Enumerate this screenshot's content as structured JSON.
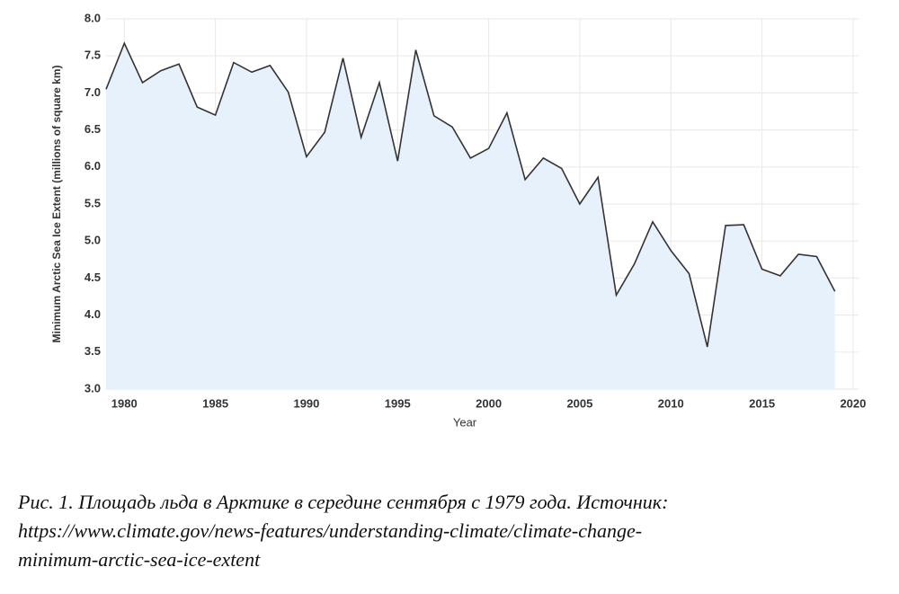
{
  "chart_data": {
    "type": "line",
    "xlabel": "Year",
    "ylabel": "Minimum Arctic Sea Ice Extent (millions of square km)",
    "x": [
      1979,
      1980,
      1981,
      1982,
      1983,
      1984,
      1985,
      1986,
      1987,
      1988,
      1989,
      1990,
      1991,
      1992,
      1993,
      1994,
      1995,
      1996,
      1997,
      1998,
      1999,
      2000,
      2001,
      2002,
      2003,
      2004,
      2005,
      2006,
      2007,
      2008,
      2009,
      2010,
      2011,
      2012,
      2013,
      2014,
      2015,
      2016,
      2017,
      2018,
      2019
    ],
    "series": [
      {
        "color": "#333333",
        "fill": "#e6f1fc",
        "values": [
          7.05,
          7.67,
          7.14,
          7.3,
          7.39,
          6.81,
          6.7,
          7.41,
          7.28,
          7.37,
          7.01,
          6.14,
          6.47,
          7.47,
          6.4,
          7.14,
          6.08,
          7.58,
          6.69,
          6.54,
          6.12,
          6.25,
          6.73,
          5.83,
          6.12,
          5.98,
          5.5,
          5.86,
          4.27,
          4.69,
          5.26,
          4.87,
          4.56,
          3.57,
          5.21,
          5.22,
          4.62,
          4.53,
          4.82,
          4.79,
          4.32
        ]
      }
    ],
    "xlim": [
      1979,
      2020.3
    ],
    "xticks": [
      1980,
      1985,
      1990,
      1995,
      2000,
      2005,
      2010,
      2015,
      2020
    ],
    "ylim": [
      3,
      8
    ],
    "yticks": [
      {
        "value": 3,
        "label": "3.0"
      },
      3.5,
      {
        "value": 4,
        "label": "4.0"
      },
      4.5,
      {
        "value": 5,
        "label": "5.0"
      },
      5.5,
      {
        "value": 6,
        "label": "6.0"
      },
      6.5,
      {
        "value": 7,
        "label": "7.0"
      },
      7.5,
      {
        "value": 8,
        "label": "8.0"
      }
    ],
    "grid": true
  },
  "caption": [
    "Рис. 1. Площадь льда в Арктике в середине сентября с 1979 года. Источник:",
    "https://www.climate.gov/news-features/understanding-climate/climate-change-",
    "minimum-arctic-sea-ice-extent"
  ]
}
